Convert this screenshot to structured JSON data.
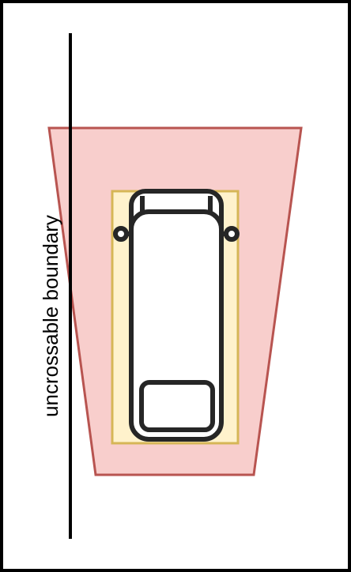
{
  "diagram": {
    "boundary_label": "uncrossable boundary",
    "colors": {
      "frame": "#000000",
      "zone_fill": "#f8cecc",
      "zone_stroke": "#b85450",
      "footprint_fill": "#fff2cc",
      "footprint_stroke": "#d6b656",
      "vehicle_stroke": "#262626",
      "boundary_line": "#000000"
    },
    "icons": [
      "car-top-view-icon"
    ]
  }
}
